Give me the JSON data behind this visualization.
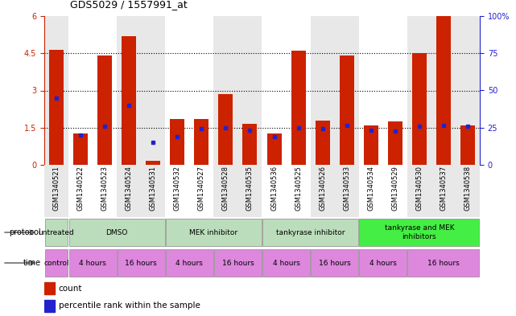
{
  "title": "GDS5029 / 1557991_at",
  "samples": [
    "GSM1340521",
    "GSM1340522",
    "GSM1340523",
    "GSM1340524",
    "GSM1340531",
    "GSM1340532",
    "GSM1340527",
    "GSM1340528",
    "GSM1340535",
    "GSM1340536",
    "GSM1340525",
    "GSM1340526",
    "GSM1340533",
    "GSM1340534",
    "GSM1340529",
    "GSM1340530",
    "GSM1340537",
    "GSM1340538"
  ],
  "red_values": [
    4.65,
    1.25,
    4.4,
    5.2,
    0.15,
    1.85,
    1.85,
    2.85,
    1.65,
    1.25,
    4.6,
    1.8,
    4.4,
    1.6,
    1.75,
    4.5,
    6.0,
    1.6
  ],
  "blue_values": [
    2.7,
    1.2,
    1.55,
    2.4,
    0.9,
    1.15,
    1.45,
    1.5,
    1.4,
    1.15,
    1.5,
    1.45,
    1.6,
    1.4,
    1.35,
    1.55,
    1.6,
    1.55
  ],
  "ylim_left": [
    0,
    6
  ],
  "ylim_right": [
    0,
    100
  ],
  "yticks_left": [
    0,
    1.5,
    3.0,
    4.5,
    6.0
  ],
  "ytick_labels_left": [
    "0",
    "1.5",
    "3",
    "4.5",
    "6"
  ],
  "yticks_right": [
    0,
    25,
    50,
    75,
    100
  ],
  "ytick_labels_right": [
    "0",
    "25",
    "50",
    "75",
    "100%"
  ],
  "bar_color": "#cc2200",
  "dot_color": "#2222cc",
  "background_color": "#ffffff",
  "protocol_groups": [
    {
      "label": "untreated",
      "start": 0,
      "end": 1,
      "color": "#bbddbb"
    },
    {
      "label": "DMSO",
      "start": 1,
      "end": 5,
      "color": "#bbddbb"
    },
    {
      "label": "MEK inhibitor",
      "start": 5,
      "end": 9,
      "color": "#bbddbb"
    },
    {
      "label": "tankyrase inhibitor",
      "start": 9,
      "end": 13,
      "color": "#bbddbb"
    },
    {
      "label": "tankyrase and MEK\ninhibitors",
      "start": 13,
      "end": 18,
      "color": "#44ee44"
    }
  ],
  "time_groups": [
    {
      "label": "control",
      "start": 0,
      "end": 1
    },
    {
      "label": "4 hours",
      "start": 1,
      "end": 3
    },
    {
      "label": "16 hours",
      "start": 3,
      "end": 5
    },
    {
      "label": "4 hours",
      "start": 5,
      "end": 7
    },
    {
      "label": "16 hours",
      "start": 7,
      "end": 9
    },
    {
      "label": "4 hours",
      "start": 9,
      "end": 11
    },
    {
      "label": "16 hours",
      "start": 11,
      "end": 13
    },
    {
      "label": "4 hours",
      "start": 13,
      "end": 15
    },
    {
      "label": "16 hours",
      "start": 15,
      "end": 18
    }
  ],
  "col_band_colors": [
    "#e8e8e8",
    "#ffffff",
    "#e8e8e8",
    "#ffffff",
    "#e8e8e8",
    "#ffffff",
    "#e8e8e8",
    "#ffffff",
    "#e8e8e8"
  ],
  "col_band_boundaries": [
    0,
    1,
    3,
    5,
    7,
    9,
    11,
    13,
    15,
    18
  ]
}
